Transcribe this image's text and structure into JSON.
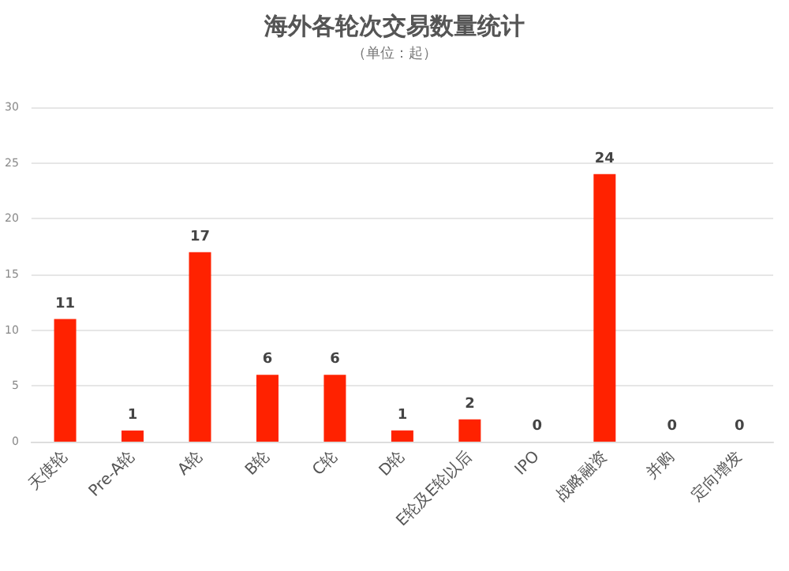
{
  "chart_data": {
    "type": "bar",
    "title": "海外各轮次交易数量统计",
    "subtitle": "（单位：起）",
    "categories": [
      "天使轮",
      "Pre-A轮",
      "A轮",
      "B轮",
      "C轮",
      "D轮",
      "E轮及E轮以后",
      "IPO",
      "战略融资",
      "并购",
      "定向增发"
    ],
    "values": [
      11,
      1,
      17,
      6,
      6,
      1,
      2,
      0,
      24,
      0,
      0
    ],
    "color": "#ff2200",
    "data_labels": true,
    "ylim": [
      0,
      30
    ],
    "yticks": [
      0,
      5,
      10,
      15,
      20,
      25,
      30
    ],
    "grid": "y"
  }
}
